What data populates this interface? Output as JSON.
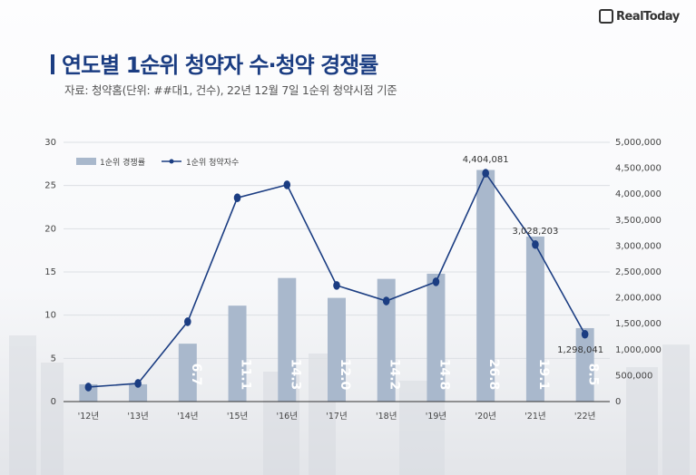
{
  "logo": {
    "mark": "RT",
    "text": "RealToday"
  },
  "header": {
    "title": "연도별 1순위 청약자 수·청약 경쟁률",
    "subtitle": "자료: 청약홈(단위: ##대1, 건수), 22년 12월 7일 1순위 청약시점 기준"
  },
  "colors": {
    "bar": "#a9b8cc",
    "line": "#1b3d82",
    "title": "#1b3d82"
  },
  "chart_data": {
    "type": "bar+line",
    "categories": [
      "'12년",
      "'13년",
      "'14년",
      "'15년",
      "'16년",
      "'17년",
      "'18년",
      "'19년",
      "'20년",
      "'21년",
      "'22년"
    ],
    "series": [
      {
        "name": "1순위 경쟁률",
        "type": "bar",
        "axis": "left",
        "values": [
          2.0,
          2.0,
          6.7,
          11.1,
          14.3,
          12.0,
          14.2,
          14.8,
          26.8,
          19.1,
          8.5
        ],
        "labels": [
          "",
          "",
          "6.7",
          "11.1",
          "14.3",
          "12.0",
          "14.2",
          "14.8",
          "26.8",
          "19.1",
          "8.5"
        ]
      },
      {
        "name": "1순위 청약자수",
        "type": "line",
        "axis": "right",
        "values": [
          280000,
          350000,
          1540000,
          3930000,
          4180000,
          2240000,
          1940000,
          2310000,
          4404081,
          3028203,
          1298041
        ],
        "labels": [
          "",
          "",
          "",
          "",
          "",
          "",
          "",
          "",
          "4,404,081",
          "3,028,203",
          "1,298,041"
        ]
      }
    ],
    "left_axis": {
      "range": [
        0,
        30
      ],
      "ticks": [
        "0",
        "5",
        "10",
        "15",
        "20",
        "25",
        "30"
      ]
    },
    "right_axis": {
      "range": [
        0,
        5000000
      ],
      "ticks": [
        "0",
        "500,000",
        "1,000,000",
        "1,500,000",
        "2,000,000",
        "2,500,000",
        "3,000,000",
        "3,500,000",
        "4,000,000",
        "4,500,000",
        "5,000,000"
      ]
    },
    "grid": true,
    "legend_position": "top-left"
  }
}
